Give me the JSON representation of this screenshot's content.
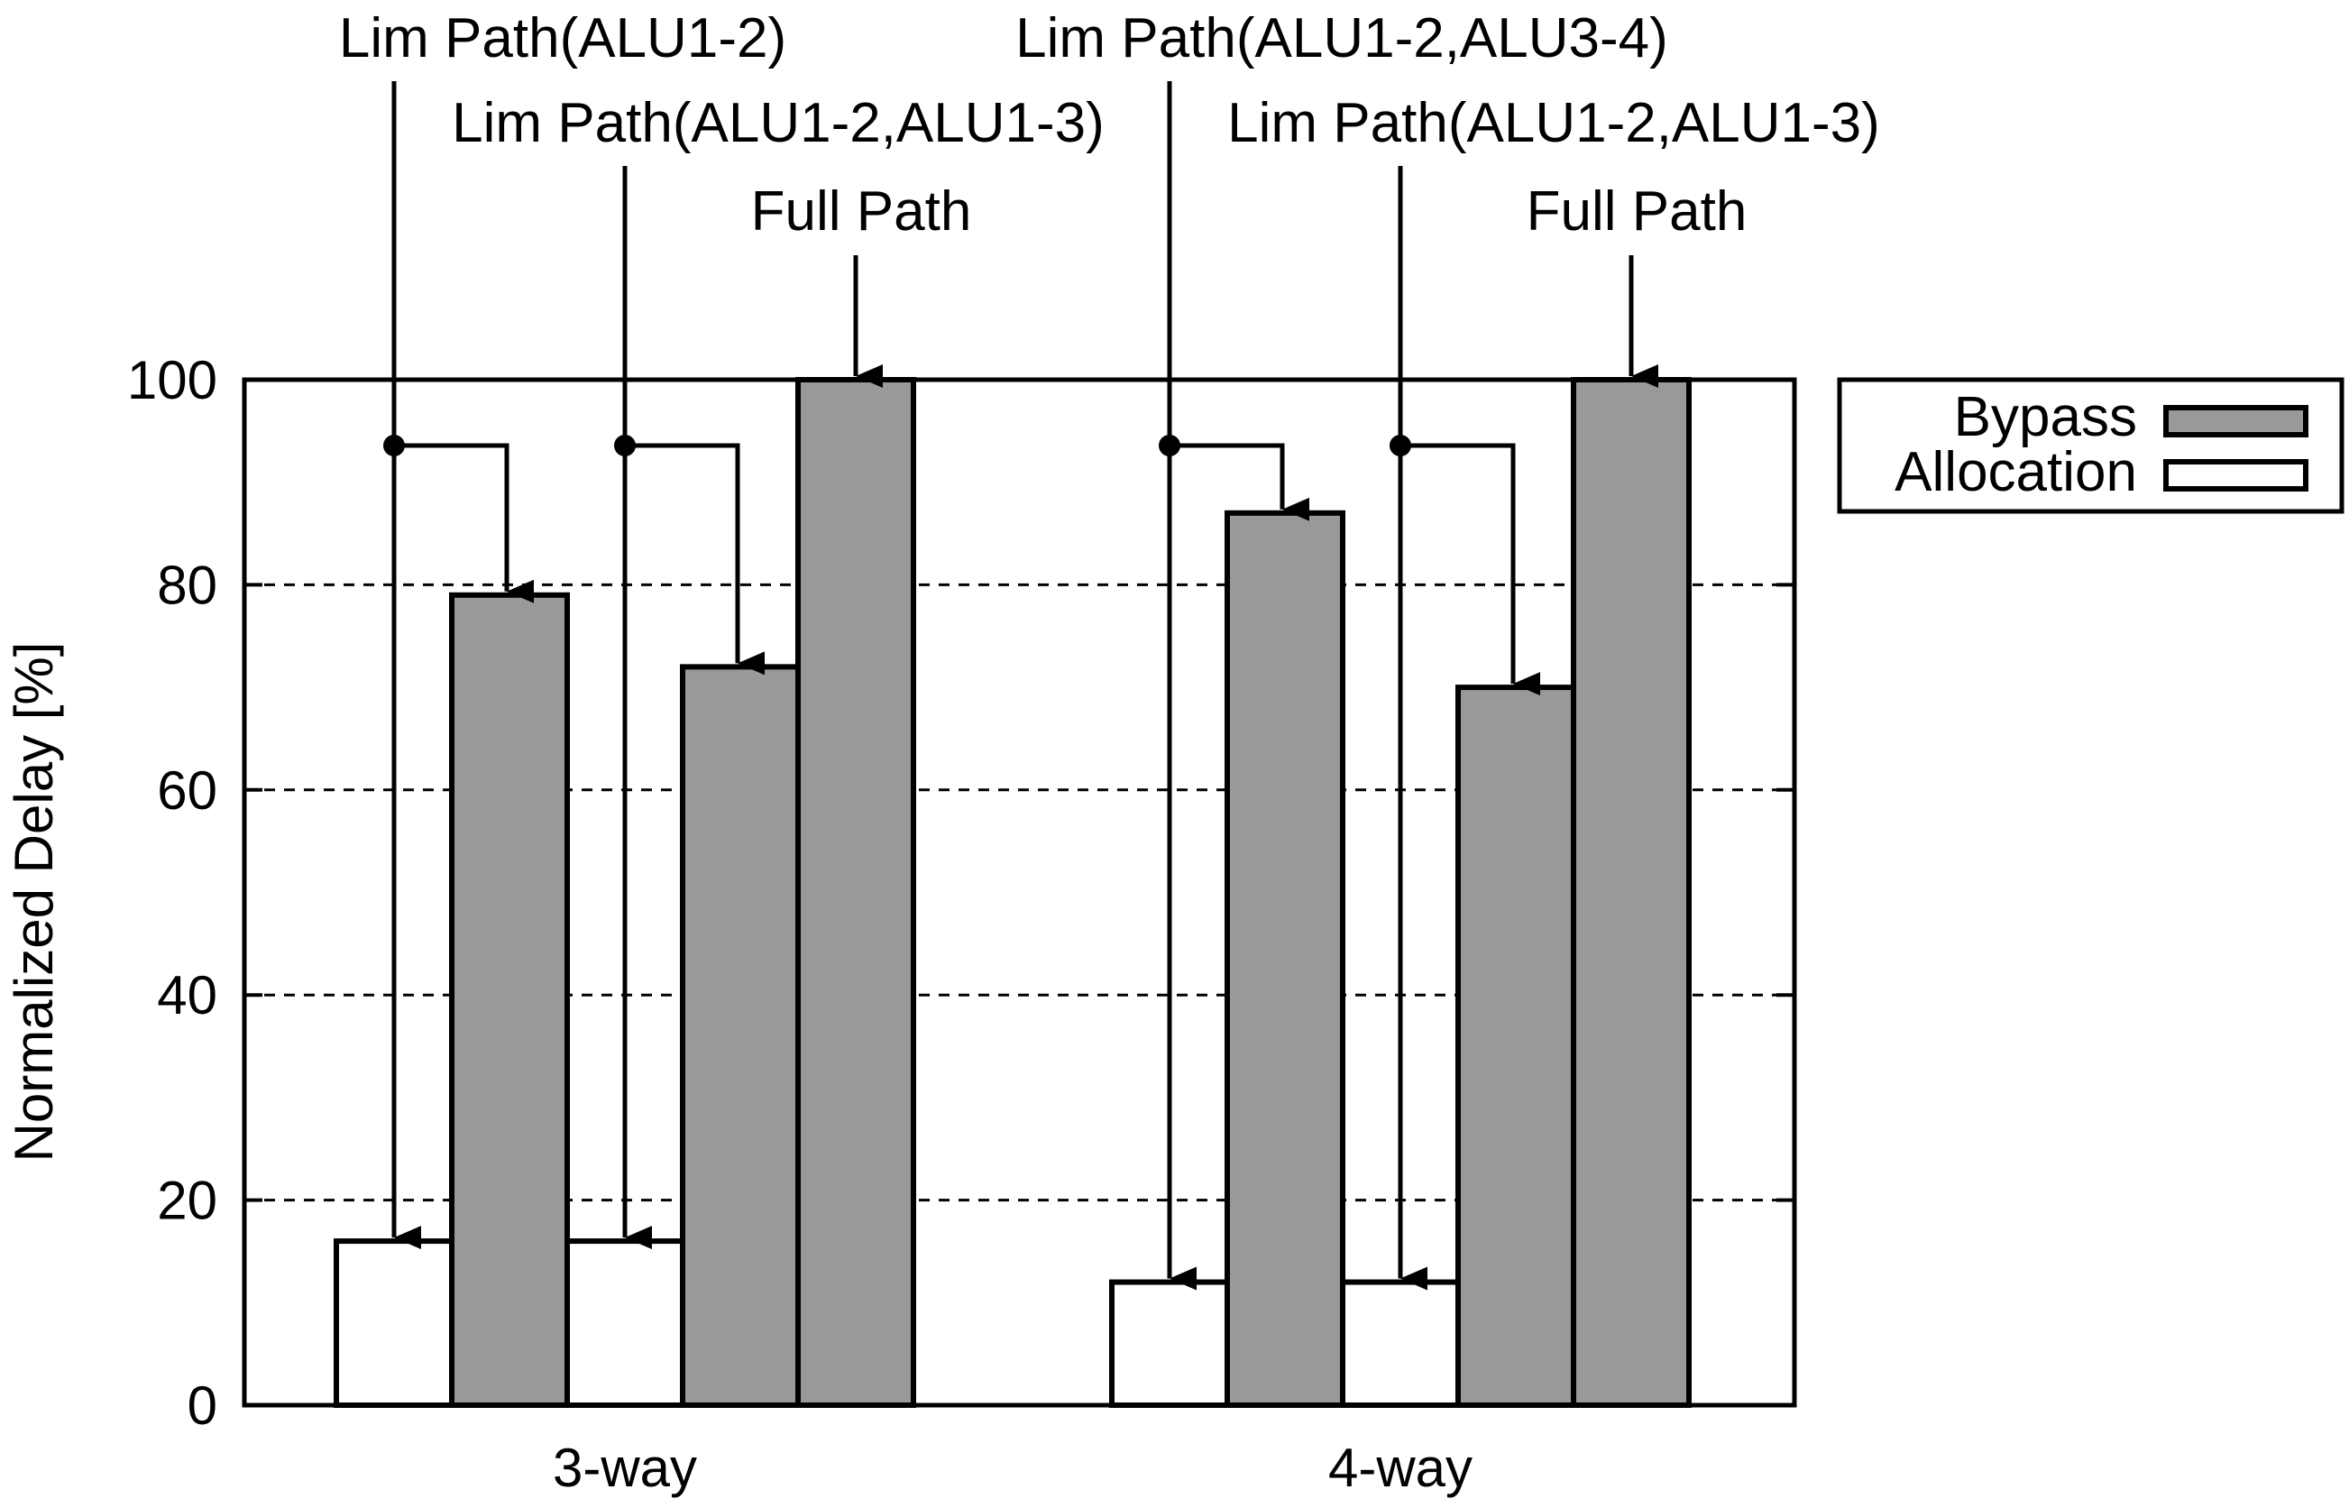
{
  "chart_data": {
    "type": "bar",
    "ylabel": "Normalized Delay [%]",
    "ylim": [
      0,
      100
    ],
    "yticks": [
      "0",
      "20",
      "40",
      "60",
      "80",
      "100"
    ],
    "ytick_values": [
      0,
      20,
      40,
      60,
      80,
      100
    ],
    "grid": "horizontal-dashed",
    "legend_position": "outside-right-top",
    "colors": {
      "Bypass": "#999999",
      "Allocation": "#ffffff"
    },
    "series": [
      {
        "name": "Bypass"
      },
      {
        "name": "Allocation"
      }
    ],
    "groups": [
      {
        "label": "3-way",
        "bars": [
          {
            "series": "Allocation",
            "value": 16
          },
          {
            "series": "Bypass",
            "value": 79
          },
          {
            "series": "Allocation",
            "value": 16
          },
          {
            "series": "Bypass",
            "value": 72
          },
          {
            "series": "Bypass",
            "value": 100
          }
        ],
        "annotations": [
          {
            "text": "Lim Path(ALU1-2)",
            "bars": [
              0,
              1
            ]
          },
          {
            "text": "Lim Path(ALU1-2,ALU1-3)",
            "bars": [
              2,
              3
            ]
          },
          {
            "text": "Full Path",
            "bars": [
              4
            ]
          }
        ]
      },
      {
        "label": "4-way",
        "bars": [
          {
            "series": "Allocation",
            "value": 12
          },
          {
            "series": "Bypass",
            "value": 87
          },
          {
            "series": "Allocation",
            "value": 12
          },
          {
            "series": "Bypass",
            "value": 70
          },
          {
            "series": "Bypass",
            "value": 100
          }
        ],
        "annotations": [
          {
            "text": "Lim Path(ALU1-2,ALU3-4)",
            "bars": [
              0,
              1
            ]
          },
          {
            "text": "Lim Path(ALU1-2,ALU1-3)",
            "bars": [
              2,
              3
            ]
          },
          {
            "text": "Full Path",
            "bars": [
              4
            ]
          }
        ]
      }
    ]
  }
}
